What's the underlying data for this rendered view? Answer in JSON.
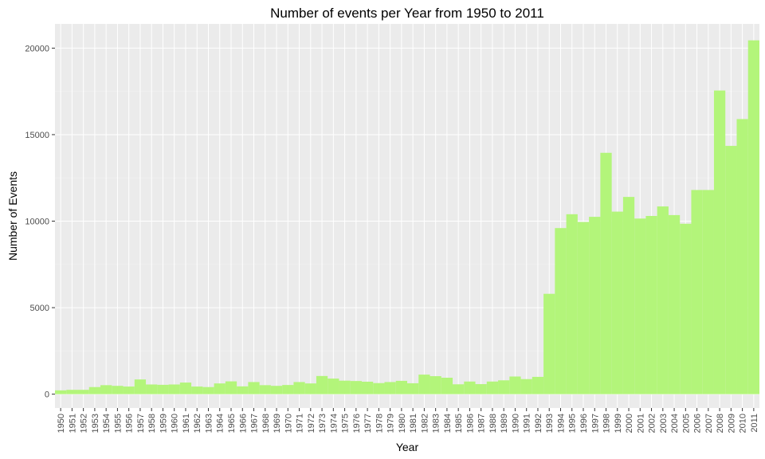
{
  "chart_data": {
    "type": "bar",
    "title": "Number of events per Year from 1950 to 2011",
    "xlabel": "Year",
    "ylabel": "Number of Events",
    "ylim": [
      -800,
      21400
    ],
    "yticks": [
      0,
      5000,
      10000,
      15000,
      20000
    ],
    "grid": true,
    "panel_color": "#ebebeb",
    "bar_color": "#b3f57a",
    "categories": [
      "1950",
      "1951",
      "1952",
      "1953",
      "1954",
      "1955",
      "1956",
      "1957",
      "1958",
      "1959",
      "1960",
      "1961",
      "1962",
      "1963",
      "1964",
      "1965",
      "1966",
      "1967",
      "1968",
      "1969",
      "1970",
      "1971",
      "1972",
      "1973",
      "1974",
      "1975",
      "1976",
      "1977",
      "1978",
      "1979",
      "1980",
      "1981",
      "1982",
      "1983",
      "1984",
      "1985",
      "1986",
      "1987",
      "1988",
      "1989",
      "1990",
      "1991",
      "1992",
      "1993",
      "1994",
      "1995",
      "1996",
      "1997",
      "1998",
      "1999",
      "2000",
      "2001",
      "2002",
      "2003",
      "2004",
      "2005",
      "2006",
      "2007",
      "2008",
      "2009",
      "2010",
      "2011"
    ],
    "values": [
      220,
      250,
      250,
      410,
      520,
      480,
      440,
      850,
      560,
      540,
      560,
      670,
      440,
      410,
      620,
      740,
      450,
      700,
      520,
      480,
      530,
      700,
      620,
      1050,
      900,
      780,
      760,
      720,
      640,
      700,
      770,
      630,
      1130,
      1040,
      950,
      570,
      730,
      580,
      730,
      800,
      1020,
      870,
      1000,
      5800,
      9600,
      10400,
      9950,
      10250,
      13950,
      10550,
      11400,
      10150,
      10300,
      10850,
      10350,
      9850,
      11800,
      11800,
      17550,
      14350,
      15900,
      20450
    ]
  }
}
